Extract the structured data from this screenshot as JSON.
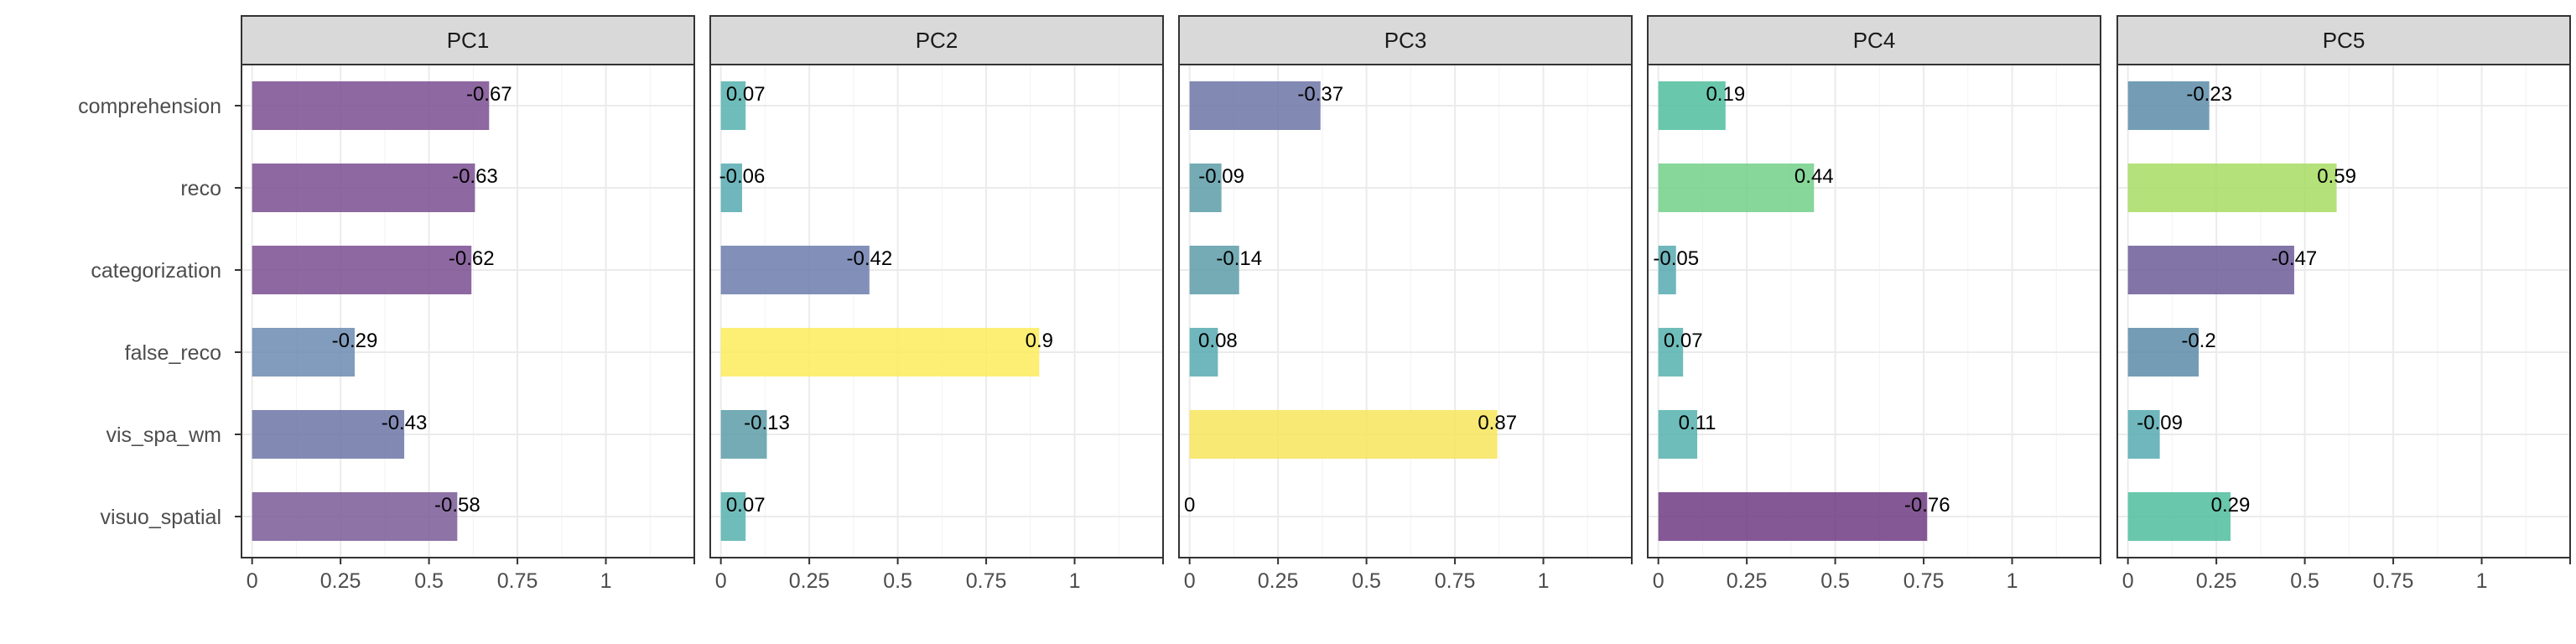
{
  "chart_data": {
    "type": "bar",
    "orientation": "horizontal",
    "categories": [
      "comprehension",
      "reco",
      "categorization",
      "false_reco",
      "vis_spa_wm",
      "visuo_spatial"
    ],
    "panels": [
      {
        "title": "PC1",
        "values": [
          0.67,
          0.63,
          0.62,
          0.29,
          0.43,
          0.58
        ],
        "labels": [
          "-0.67",
          "-0.63",
          "-0.62",
          "-0.29",
          "-0.43",
          "-0.58"
        ],
        "colors": [
          "#7a4e90",
          "#7a4e90",
          "#7a4e90",
          "#6b8bb0",
          "#6c74a6",
          "#7a5a98"
        ]
      },
      {
        "title": "PC2",
        "values": [
          0.07,
          0.06,
          0.42,
          0.9,
          0.13,
          0.07
        ],
        "labels": [
          "0.07",
          "-0.06",
          "-0.42",
          "0.9",
          "-0.13",
          "0.07"
        ],
        "colors": [
          "#56b2ae",
          "#56aab0",
          "#6c7cad",
          "#fbec5c",
          "#5c9ca8",
          "#56b2ae"
        ]
      },
      {
        "title": "PC3",
        "values": [
          0.37,
          0.09,
          0.14,
          0.08,
          0.87,
          0.0
        ],
        "labels": [
          "-0.37",
          "-0.09",
          "-0.14",
          "0.08",
          "0.87",
          "0"
        ],
        "colors": [
          "#6c74a6",
          "#5c9ca8",
          "#5c9ca8",
          "#56aab0",
          "#f6e55a",
          "#56aab0"
        ]
      },
      {
        "title": "PC4",
        "values": [
          0.19,
          0.44,
          0.05,
          0.07,
          0.11,
          0.76
        ],
        "labels": [
          "0.19",
          "0.44",
          "-0.05",
          "0.07",
          "0.11",
          "-0.76"
        ],
        "colors": [
          "#4fbd9e",
          "#72cf88",
          "#56aab0",
          "#56b2ae",
          "#56b2ae",
          "#6f3b82"
        ]
      },
      {
        "title": "PC5",
        "values": [
          0.23,
          0.59,
          0.47,
          0.2,
          0.09,
          0.29
        ],
        "labels": [
          "-0.23",
          "0.59",
          "-0.47",
          "-0.2",
          "-0.09",
          "0.29"
        ],
        "colors": [
          "#5c8ca8",
          "#a7dc62",
          "#6c5c98",
          "#5c8ca8",
          "#56aab0",
          "#4fbd9e"
        ]
      }
    ],
    "xticks": [
      "0",
      "0.25",
      "0.5",
      "0.75",
      "1"
    ],
    "xlim": [
      -0.03,
      1.25
    ],
    "xlabel": "",
    "ylabel": "",
    "grid": true,
    "legend": "none"
  }
}
